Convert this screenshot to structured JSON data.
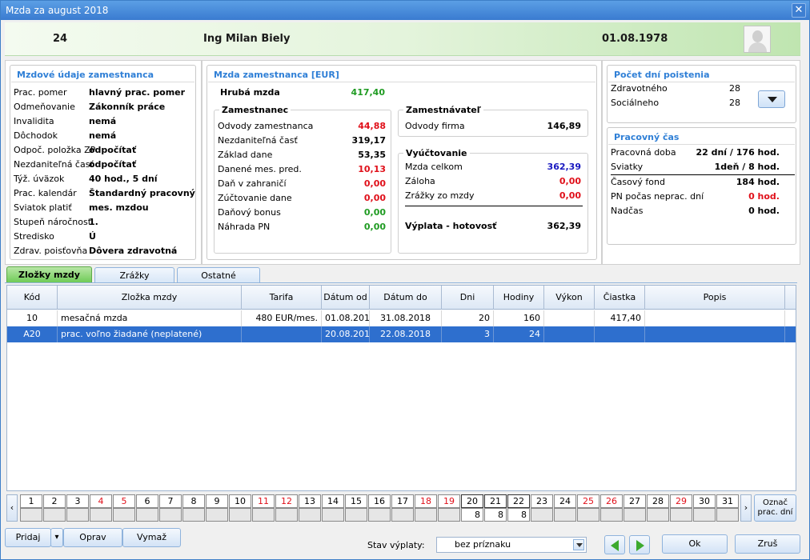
{
  "window": {
    "title": "Mzda za august 2018",
    "close_glyph": "✕"
  },
  "header": {
    "employee_id": "24",
    "employee_name": "Ing Milan Biely",
    "date": "01.08.1978"
  },
  "employee_panel": {
    "title": "Mzdové údaje zamestnanca",
    "rows": [
      {
        "label": "Prac. pomer",
        "value": "hlavný prac. pomer"
      },
      {
        "label": "Odmeňovanie",
        "value": "Zákonník práce"
      },
      {
        "label": "Invalidita",
        "value": "nemá"
      },
      {
        "label": "Dôchodok",
        "value": "nemá"
      },
      {
        "label": "Odpoč. položka ZP",
        "value": "odpočítať"
      },
      {
        "label": "Nezdaniteľná časť",
        "value": "odpočítať"
      },
      {
        "label": "Týž. úväzok",
        "value": "40 hod., 5 dní"
      },
      {
        "label": "Prac. kalendár",
        "value": "Štandardný pracovný"
      },
      {
        "label": "Sviatok platiť",
        "value": "mes. mzdou"
      },
      {
        "label": "Stupeň náročnosti",
        "value": "1."
      },
      {
        "label": "Stredisko",
        "value": "Ú"
      },
      {
        "label": "Zdrav. poisťovňa",
        "value": "Dôvera zdravotná"
      }
    ]
  },
  "wage_panel": {
    "title": "Mzda zamestnanca [EUR]",
    "gross_label": "Hrubá mzda",
    "gross_value": "417,40",
    "employee_section": {
      "title": "Zamestnanec",
      "rows": [
        {
          "label": "Odvody zamestnanca",
          "value": "44,88",
          "color": "#e0101a"
        },
        {
          "label": "Nezdaniteľná časť",
          "value": "319,17",
          "color": "#000000"
        },
        {
          "label": "Základ dane",
          "value": "53,35",
          "color": "#000000"
        },
        {
          "label": "Danené mes. pred.",
          "value": "10,13",
          "color": "#e0101a"
        },
        {
          "label": "Daň v zahraničí",
          "value": "0,00",
          "color": "#e0101a"
        },
        {
          "label": "Zúčtovanie dane",
          "value": "0,00",
          "color": "#e0101a"
        },
        {
          "label": "Daňový bonus",
          "value": "0,00",
          "color": "#1f9b22"
        },
        {
          "label": "Náhrada PN",
          "value": "0,00",
          "color": "#1f9b22"
        }
      ]
    },
    "employer_section": {
      "title": "Zamestnávateľ",
      "label": "Odvody firma",
      "value": "146,89"
    },
    "settlement_section": {
      "title": "Vyúčtovanie",
      "rows": [
        {
          "label": "Mzda celkom",
          "value": "362,39",
          "color": "#1818c0"
        },
        {
          "label": "Záloha",
          "value": "0,00",
          "color": "#e0101a"
        },
        {
          "label": "Zrážky zo mzdy",
          "value": "0,00",
          "color": "#e0101a"
        }
      ],
      "payout_label": "Výplata - hotovosť",
      "payout_value": "362,39"
    }
  },
  "insurance_panel": {
    "title": "Počet dní poistenia",
    "rows": [
      {
        "label": "Zdravotného",
        "value": "28"
      },
      {
        "label": "Sociálneho",
        "value": "28"
      }
    ]
  },
  "worktime_panel": {
    "title": "Pracovný čas",
    "rows": [
      {
        "label": "Pracovná doba",
        "value": "22 dní / 176 hod.",
        "color": "#000000"
      },
      {
        "label": "Sviatky",
        "value": "1deň / 8 hod.",
        "color": "#000000"
      },
      {
        "label": "Časový fond",
        "value": "184 hod.",
        "color": "#000000"
      },
      {
        "label": "PN počas neprac. dní",
        "value": "0 hod.",
        "color": "#e0101a"
      },
      {
        "label": "Nadčas",
        "value": "0 hod.",
        "color": "#000000"
      }
    ]
  },
  "tabs": [
    {
      "label": "Zložky mzdy",
      "active": true
    },
    {
      "label": "Zrážky",
      "active": false
    },
    {
      "label": "Ostatné",
      "active": false
    }
  ],
  "grid": {
    "columns": [
      "Kód",
      "Zložka mzdy",
      "Tarifa",
      "Dátum od",
      "Dátum do",
      "Dni",
      "Hodiny",
      "Výkon",
      "Čiastka",
      "Popis"
    ],
    "rows": [
      {
        "cells": [
          "10",
          "mesačná mzda",
          "480 EUR/mes.",
          "01.08.2018",
          "31.08.2018",
          "20",
          "160",
          "",
          "417,40",
          ""
        ],
        "selected": false
      },
      {
        "cells": [
          "A20",
          "prac. voľno žiadané (neplatené)",
          "",
          "20.08.2018",
          "22.08.2018",
          "3",
          "24",
          "",
          "",
          ""
        ],
        "selected": true
      }
    ]
  },
  "days": {
    "prev_glyph": "‹",
    "next_glyph": "›",
    "numbers": [
      "1",
      "2",
      "3",
      "4",
      "5",
      "6",
      "7",
      "8",
      "9",
      "10",
      "11",
      "12",
      "13",
      "14",
      "15",
      "16",
      "17",
      "18",
      "19",
      "20",
      "21",
      "22",
      "23",
      "24",
      "25",
      "26",
      "27",
      "28",
      "29",
      "30",
      "31"
    ],
    "weekend": [
      4,
      5,
      11,
      12,
      18,
      19,
      25,
      26,
      29
    ],
    "highlighted": [
      20,
      21,
      22
    ],
    "values": {
      "20": "8",
      "21": "8",
      "22": "8"
    },
    "mark_button": "Označ prac. dní"
  },
  "footer": {
    "add": "Pridaj",
    "add_dropdown_glyph": "▾",
    "edit": "Oprav",
    "delete": "Vymaž",
    "status_label": "Stav výplaty:",
    "status_value": "bez príznaku",
    "ok": "Ok",
    "cancel": "Zruš"
  }
}
